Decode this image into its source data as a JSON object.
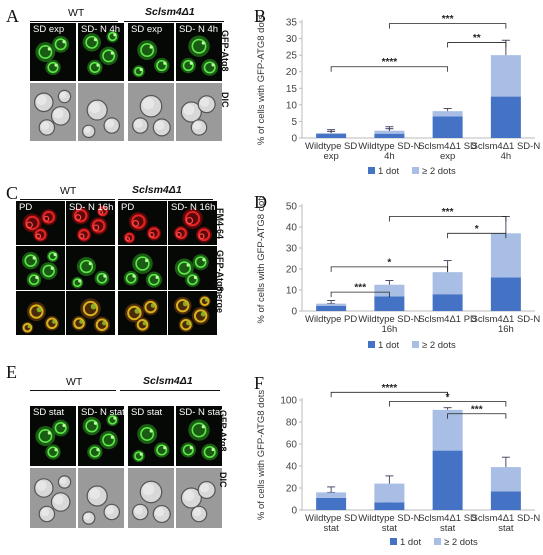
{
  "panels": {
    "A": {
      "label": "A",
      "group_wt": "WT",
      "group_mut": "Sclsm4Δ1",
      "conditions": [
        "SD exp",
        "SD- N 4h",
        "SD exp",
        "SD- N 4h"
      ],
      "rows": [
        "GFP-Atg8",
        "DIC"
      ]
    },
    "C": {
      "label": "C",
      "group_wt": "WT",
      "group_mut": "Sclsm4Δ1",
      "conditions": [
        "PD",
        "SD- N 16h",
        "PD",
        "SD- N 16h"
      ],
      "rows": [
        "FM4-64",
        "GFP-Atg8",
        "merge"
      ]
    },
    "E": {
      "label": "E",
      "group_wt": "WT",
      "group_mut": "Sclsm4Δ1",
      "conditions": [
        "SD stat",
        "SD- N stat",
        "SD stat",
        "SD- N stat"
      ],
      "rows": [
        "GFP-Atg8",
        "DIC"
      ]
    }
  },
  "chart_data": [
    {
      "panel": "B",
      "type": "bar",
      "stacked": true,
      "ylabel": "% of cells with GFP-ATG8 dots",
      "ylim": [
        0,
        35
      ],
      "yticks": [
        0,
        5,
        10,
        15,
        20,
        25,
        30,
        35
      ],
      "categories": [
        "Wildtype SD exp",
        "Wildtype SD-N 4h",
        "Sclsm4Δ1 SD exp",
        "Sclsm4Δ1 SD-N 4h"
      ],
      "series": [
        {
          "name": "1 dot",
          "values": [
            1.2,
            1.3,
            6.5,
            12.5
          ],
          "errors": [
            1.3,
            1.5,
            1.0,
            3.8
          ]
        },
        {
          "name": "≥ 2 dots",
          "values": [
            0.3,
            0.9,
            1.6,
            12.5
          ],
          "errors": [
            0.5,
            1.2,
            0.8,
            4.5
          ]
        }
      ],
      "significance": [
        {
          "from": 0,
          "to": 2,
          "label": "****"
        },
        {
          "from": 1,
          "to": 3,
          "label": "***"
        },
        {
          "from": 2,
          "to": 3,
          "label": "**"
        }
      ],
      "legend": "bottom"
    },
    {
      "panel": "D",
      "type": "bar",
      "stacked": true,
      "ylabel": "% of cells with GFP-ATG8 dots",
      "ylim": [
        0,
        50
      ],
      "yticks": [
        0,
        10,
        20,
        30,
        40,
        50
      ],
      "categories": [
        "Wildtype PD",
        "Wildtype SD-N 16h",
        "Sclsm4Δ1 PD",
        "Sclsm4Δ1 SD-N 16h"
      ],
      "series": [
        {
          "name": "1 dot",
          "values": [
            2.5,
            7.0,
            8.0,
            16.0
          ],
          "errors": [
            1.0,
            3.0,
            3.5,
            5.0
          ]
        },
        {
          "name": "≥ 2 dots",
          "values": [
            1.0,
            5.5,
            10.5,
            21.0
          ],
          "errors": [
            1.5,
            2.0,
            5.5,
            8.0
          ]
        }
      ],
      "significance": [
        {
          "from": 0,
          "to": 1,
          "label": "***"
        },
        {
          "from": 0,
          "to": 2,
          "label": "*"
        },
        {
          "from": 1,
          "to": 3,
          "label": "***"
        },
        {
          "from": 2,
          "to": 3,
          "label": "*"
        }
      ],
      "legend": "bottom"
    },
    {
      "panel": "F",
      "type": "bar",
      "stacked": true,
      "ylabel": "% of cells with GFP-ATG8 dots",
      "ylim": [
        0,
        100
      ],
      "yticks": [
        0,
        20,
        40,
        60,
        80,
        100
      ],
      "categories": [
        "Wildtype SD stat",
        "Wildtype SD-N stat",
        "Sclsm4Δ1 SD stat",
        "Sclsm4Δ1 SD-N stat"
      ],
      "series": [
        {
          "name": "1 dot",
          "values": [
            11,
            7,
            54,
            17
          ],
          "errors": [
            5,
            4,
            17,
            8
          ]
        },
        {
          "name": "≥ 2 dots",
          "values": [
            5,
            17,
            37,
            22
          ],
          "errors": [
            5,
            7,
            2,
            9
          ]
        }
      ],
      "significance": [
        {
          "from": 0,
          "to": 2,
          "label": "****"
        },
        {
          "from": 1,
          "to": 3,
          "label": "*"
        },
        {
          "from": 2,
          "to": 3,
          "label": "***"
        }
      ],
      "legend": "bottom"
    }
  ],
  "colors": {
    "one_dot": "#4472c4",
    "two_dots": "#a9bee4",
    "gfp": "#3fbf2f",
    "fm464": "#cc1c1c"
  }
}
